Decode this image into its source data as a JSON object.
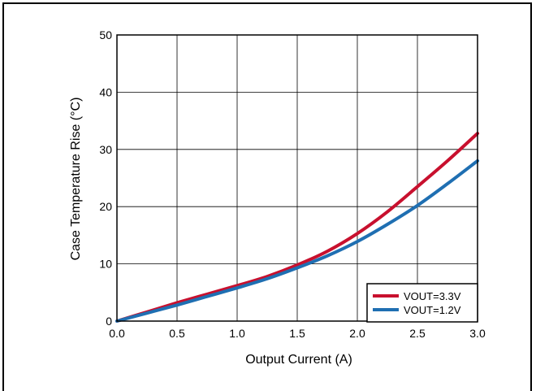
{
  "chart_data": {
    "type": "line",
    "xlabel": "Output Current (A)",
    "ylabel": "Case Temperature Rise (°C)",
    "xlim": [
      0,
      3
    ],
    "ylim": [
      0,
      50
    ],
    "x_ticks": [
      "0.0",
      "0.5",
      "1.0",
      "1.5",
      "2.0",
      "2.5",
      "3.0"
    ],
    "y_ticks": [
      "0",
      "10",
      "20",
      "30",
      "40",
      "50"
    ],
    "grid": true,
    "legend_position": "bottom-right",
    "series": [
      {
        "name": "VOUT=3.3V",
        "color": "#c8102e",
        "x": [
          0,
          0.25,
          0.5,
          0.75,
          1.0,
          1.25,
          1.5,
          1.75,
          2.0,
          2.25,
          2.5,
          2.75,
          3.0
        ],
        "y": [
          0,
          1.6,
          3.2,
          4.7,
          6.2,
          7.8,
          9.8,
          12.2,
          15.3,
          19.1,
          23.5,
          28.0,
          32.8
        ]
      },
      {
        "name": "VOUT=1.2V",
        "color": "#1f6fb2",
        "x": [
          0,
          0.25,
          0.5,
          0.75,
          1.0,
          1.25,
          1.5,
          1.75,
          2.0,
          2.25,
          2.5,
          2.75,
          3.0
        ],
        "y": [
          0,
          1.4,
          2.8,
          4.3,
          5.8,
          7.4,
          9.3,
          11.4,
          13.9,
          16.9,
          20.2,
          24.0,
          28.0
        ]
      }
    ]
  }
}
